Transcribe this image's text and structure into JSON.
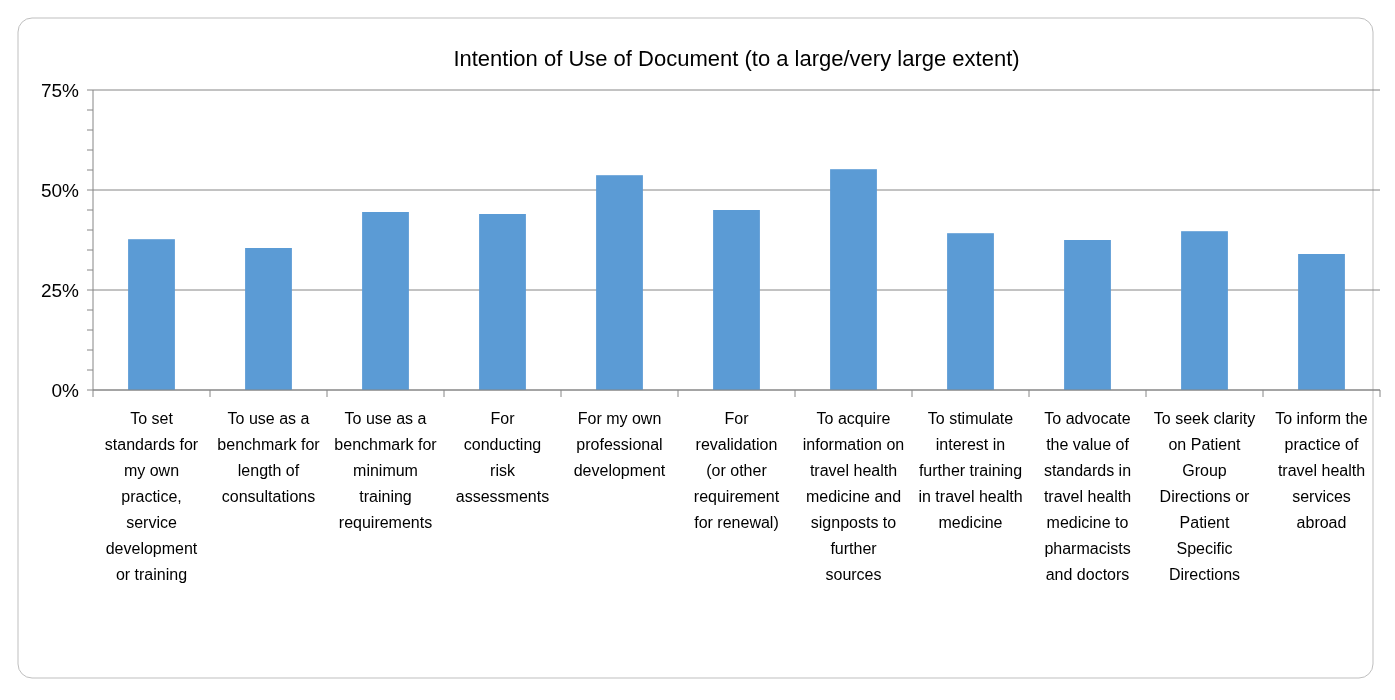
{
  "chart_data": {
    "type": "bar",
    "title": "Intention of Use of Document (to a large/very large extent)",
    "categories": [
      "To set standards for my own practice, service development or training",
      "To use as a benchmark for length of consultations",
      "To use as a benchmark for minimum training requirements",
      "For conducting risk assessments",
      "For my own professional development",
      "For revalidation (or other requirement for renewal)",
      "To acquire information on travel health medicine and signposts to further sources",
      "To stimulate interest in further training in travel health medicine",
      "To advocate the value of standards in travel health medicine to pharmacists and doctors",
      "To seek clarity on Patient Group Directions or Patient Specific Directions",
      "To inform the practice of travel health services abroad"
    ],
    "values": [
      37.7,
      35.5,
      44.5,
      44,
      53.7,
      45,
      55.2,
      39.2,
      37.5,
      39.7,
      34
    ],
    "color": "#5b9bd5",
    "ylim": [
      0,
      75
    ],
    "yticks": [
      {
        "value": 0,
        "label": "0%"
      },
      {
        "value": 5,
        "label": null
      },
      {
        "value": 10,
        "label": null
      },
      {
        "value": 15,
        "label": null
      },
      {
        "value": 20,
        "label": null
      },
      {
        "value": 25,
        "label": "25%"
      },
      {
        "value": 30,
        "label": null
      },
      {
        "value": 35,
        "label": null
      },
      {
        "value": 40,
        "label": null
      },
      {
        "value": 45,
        "label": null
      },
      {
        "value": 50,
        "label": "50%"
      },
      {
        "value": 55,
        "label": null
      },
      {
        "value": 60,
        "label": null
      },
      {
        "value": 65,
        "label": null
      },
      {
        "value": 70,
        "label": null
      },
      {
        "value": 75,
        "label": "75%"
      }
    ],
    "grid": "y"
  }
}
